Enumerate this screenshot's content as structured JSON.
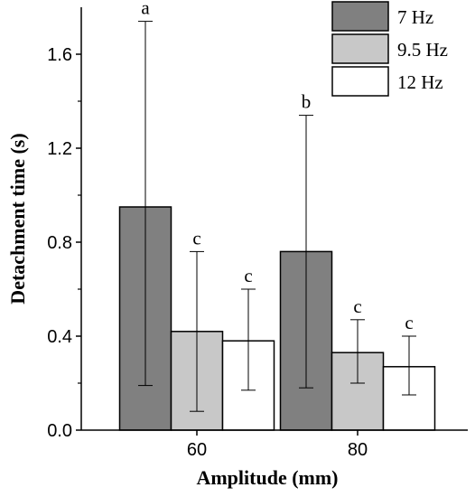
{
  "chart_data": {
    "type": "bar",
    "xlabel": "Amplitude (mm)",
    "ylabel": "Detachment time (s)",
    "categories": [
      "60",
      "80"
    ],
    "ylim": [
      0,
      1.8
    ],
    "yticks": [
      0.0,
      0.4,
      0.8,
      1.2,
      1.6
    ],
    "ytick_labels": [
      "0.0",
      "0.4",
      "0.8",
      "1.2",
      "1.6"
    ],
    "grid": false,
    "legend_position": "top-right",
    "series": [
      {
        "name": "7 Hz",
        "color": "#808080",
        "values": [
          0.95,
          0.76
        ],
        "error_low": [
          0.19,
          0.18
        ],
        "error_high": [
          1.74,
          1.34
        ],
        "labels": [
          "a",
          "b"
        ]
      },
      {
        "name": "9.5 Hz",
        "color": "#c8c8c8",
        "values": [
          0.42,
          0.33
        ],
        "error_low": [
          0.08,
          0.2
        ],
        "error_high": [
          0.76,
          0.47
        ],
        "labels": [
          "c",
          "c"
        ]
      },
      {
        "name": "12 Hz",
        "color": "#ffffff",
        "values": [
          0.38,
          0.27
        ],
        "error_low": [
          0.17,
          0.15
        ],
        "error_high": [
          0.6,
          0.4
        ],
        "labels": [
          "c",
          "c"
        ]
      }
    ]
  }
}
